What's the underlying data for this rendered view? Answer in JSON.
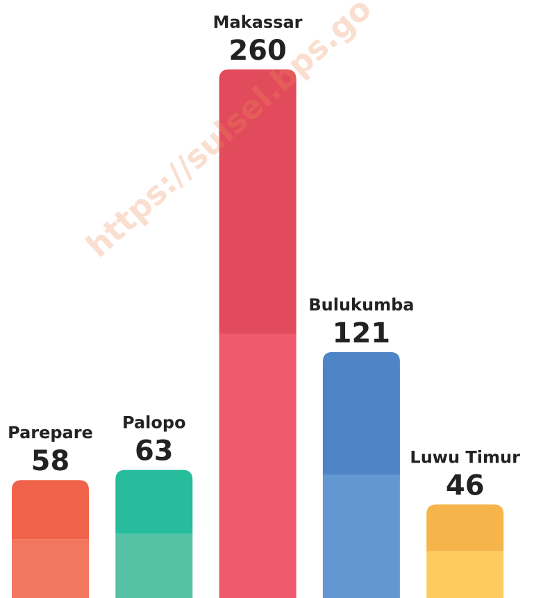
{
  "chart_data": {
    "type": "bar",
    "categories": [
      "Parepare",
      "Palopo",
      "Makassar",
      "Bulukumba",
      "Luwu Timur"
    ],
    "values": [
      58,
      63,
      260,
      121,
      46
    ],
    "colors": [
      "#f0634a",
      "#26bc9c",
      "#e24b5b",
      "#4d85c6",
      "#f5b54b"
    ],
    "light_colors": [
      "#f3765e",
      "#55c2a6",
      "#f05a6d",
      "#6297d2",
      "#fecb5e"
    ]
  },
  "watermark": "https://sulsel.bps.go"
}
